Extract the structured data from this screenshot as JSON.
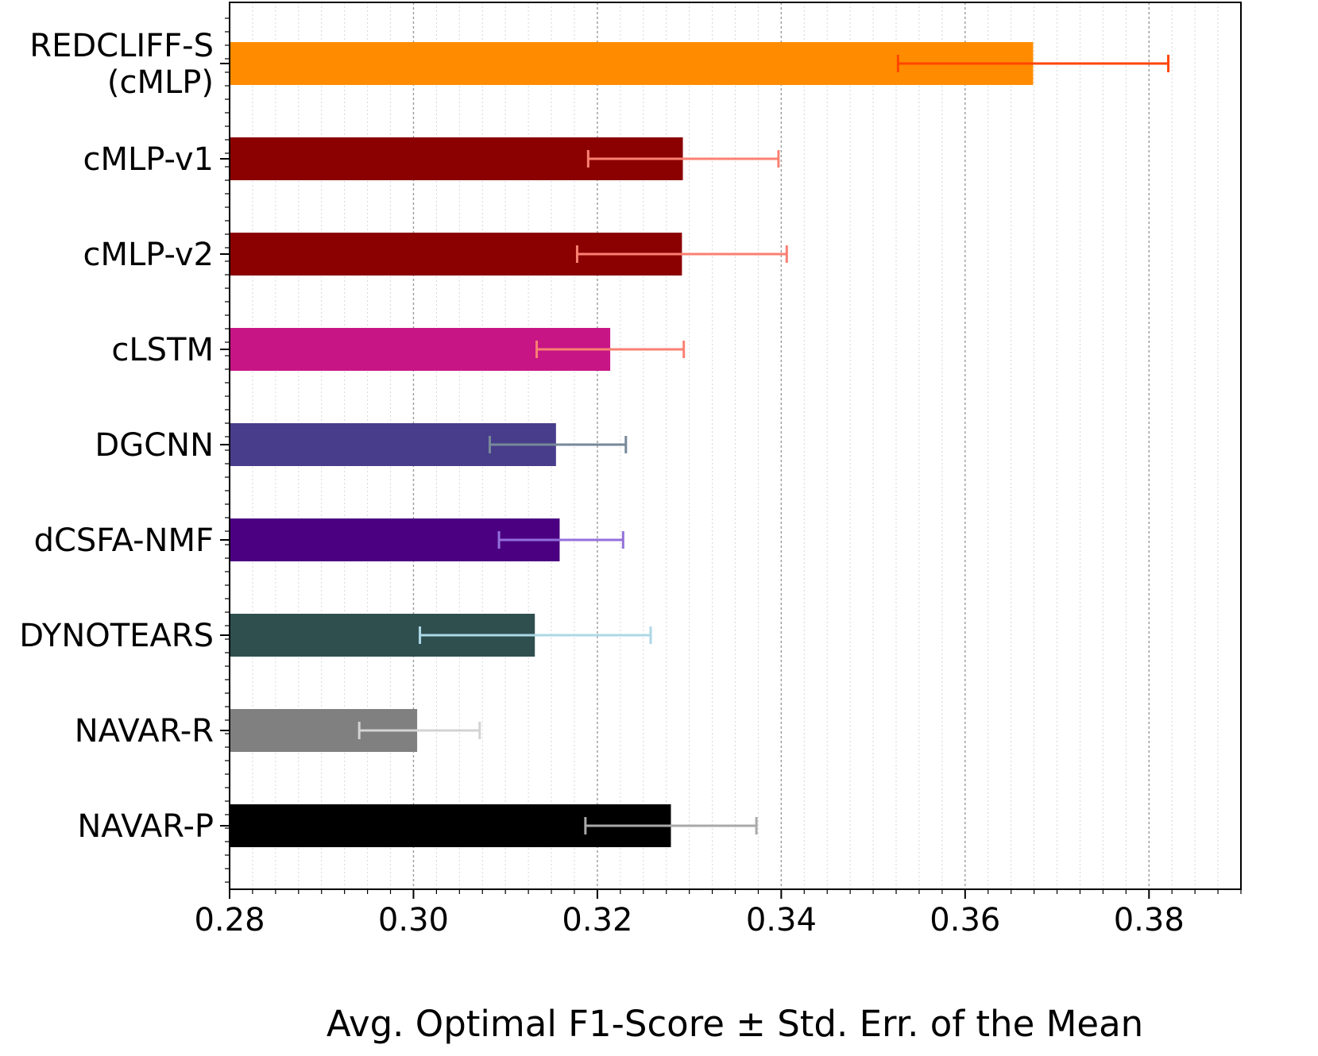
{
  "chart_data": {
    "type": "bar",
    "orientation": "horizontal",
    "title": "",
    "xlabel": "Avg. Optimal F1-Score ± Std. Err. of the Mean",
    "ylabel": "",
    "xlim": [
      0.28,
      0.39
    ],
    "xticks": [
      0.28,
      0.3,
      0.32,
      0.34,
      0.36,
      0.38
    ],
    "xtick_labels": [
      "0.28",
      "0.30",
      "0.32",
      "0.34",
      "0.36",
      "0.38"
    ],
    "grid": "vertical dotted, major and minor",
    "legend": "none",
    "bars": [
      {
        "label_lines": [
          "REDCLIFF-S",
          "(cMLP)"
        ],
        "value": 0.3674,
        "err_low": 0.3527,
        "err_high": 0.3821,
        "bar_color": "#ff8c00",
        "err_color": "#ff4500"
      },
      {
        "label_lines": [
          "cMLP-v1"
        ],
        "value": 0.3293,
        "err_low": 0.319,
        "err_high": 0.3397,
        "bar_color": "#8b0000",
        "err_color": "#fa8072"
      },
      {
        "label_lines": [
          "cMLP-v2"
        ],
        "value": 0.3292,
        "err_low": 0.3178,
        "err_high": 0.3406,
        "bar_color": "#8b0000",
        "err_color": "#fa8072"
      },
      {
        "label_lines": [
          "cLSTM"
        ],
        "value": 0.3214,
        "err_low": 0.3134,
        "err_high": 0.3294,
        "bar_color": "#c71585",
        "err_color": "#fa8072"
      },
      {
        "label_lines": [
          "DGCNN"
        ],
        "value": 0.3155,
        "err_low": 0.3083,
        "err_high": 0.3231,
        "bar_color": "#483d8b",
        "err_color": "#778899"
      },
      {
        "label_lines": [
          "dCSFA-NMF"
        ],
        "value": 0.3159,
        "err_low": 0.3093,
        "err_high": 0.3228,
        "bar_color": "#4b0082",
        "err_color": "#9370db"
      },
      {
        "label_lines": [
          "DYNOTEARS"
        ],
        "value": 0.3132,
        "err_low": 0.3007,
        "err_high": 0.3258,
        "bar_color": "#2f4f4f",
        "err_color": "#add8e6"
      },
      {
        "label_lines": [
          "NAVAR-R"
        ],
        "value": 0.3004,
        "err_low": 0.2941,
        "err_high": 0.3072,
        "bar_color": "#808080",
        "err_color": "#d3d3d3"
      },
      {
        "label_lines": [
          "NAVAR-P"
        ],
        "value": 0.328,
        "err_low": 0.3187,
        "err_high": 0.3373,
        "bar_color": "#000000",
        "err_color": "#a9a9a9"
      }
    ]
  }
}
